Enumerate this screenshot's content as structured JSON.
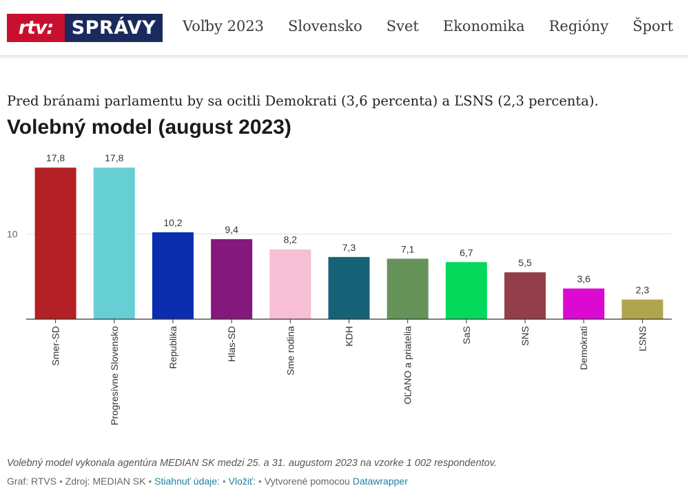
{
  "header": {
    "logo_left": "rtv:",
    "logo_right": "SPRÁVY",
    "nav": [
      "Voľby 2023",
      "Slovensko",
      "Svet",
      "Ekonomika",
      "Regióny",
      "Šport"
    ]
  },
  "intro": "Pred bránami parlamentu by sa ocitli Demokrati (3,6 percenta) a ĽSNS (2,3 percenta).",
  "chart_data": {
    "type": "bar",
    "title": "Volebný model (august 2023)",
    "categories": [
      "Smer-SD",
      "Progresívne Slovensko",
      "Republika",
      "Hlas-SD",
      "Sme rodina",
      "KDH",
      "OĽANO a priatelia",
      "SaS",
      "SNS",
      "Demokrati",
      "ĽSNS"
    ],
    "values": [
      17.8,
      17.8,
      10.2,
      9.4,
      8.2,
      7.3,
      7.1,
      6.7,
      5.5,
      3.6,
      2.3
    ],
    "value_labels": [
      "17,8",
      "17,8",
      "10,2",
      "9,4",
      "8,2",
      "7,3",
      "7,1",
      "6,7",
      "5,5",
      "3,6",
      "2,3"
    ],
    "colors": [
      "#b32025",
      "#66cfd4",
      "#0a2ead",
      "#85187c",
      "#f7bfd3",
      "#166378",
      "#66935a",
      "#05d95b",
      "#953e4b",
      "#dc09d2",
      "#b0a54f"
    ],
    "y_ticks": [
      {
        "value": 10,
        "label": "10"
      }
    ],
    "ylim": [
      0,
      18.5
    ],
    "xlabel": "",
    "ylabel": "",
    "grid": true,
    "legend": "none"
  },
  "caption": "Volebný model vykonala agentúra MEDIAN SK medzi 25. a 31. augustom 2023 na vzorke 1 002 respondentov.",
  "footer": {
    "graf": "Graf: RTVS",
    "sep": " • ",
    "source": "Zdroj: MEDIAN SK",
    "download": "Stiahnuť údaje:",
    "embed": "Vložiť:",
    "made_with": "Vytvorené pomocou",
    "datawrapper": "Datawrapper"
  }
}
